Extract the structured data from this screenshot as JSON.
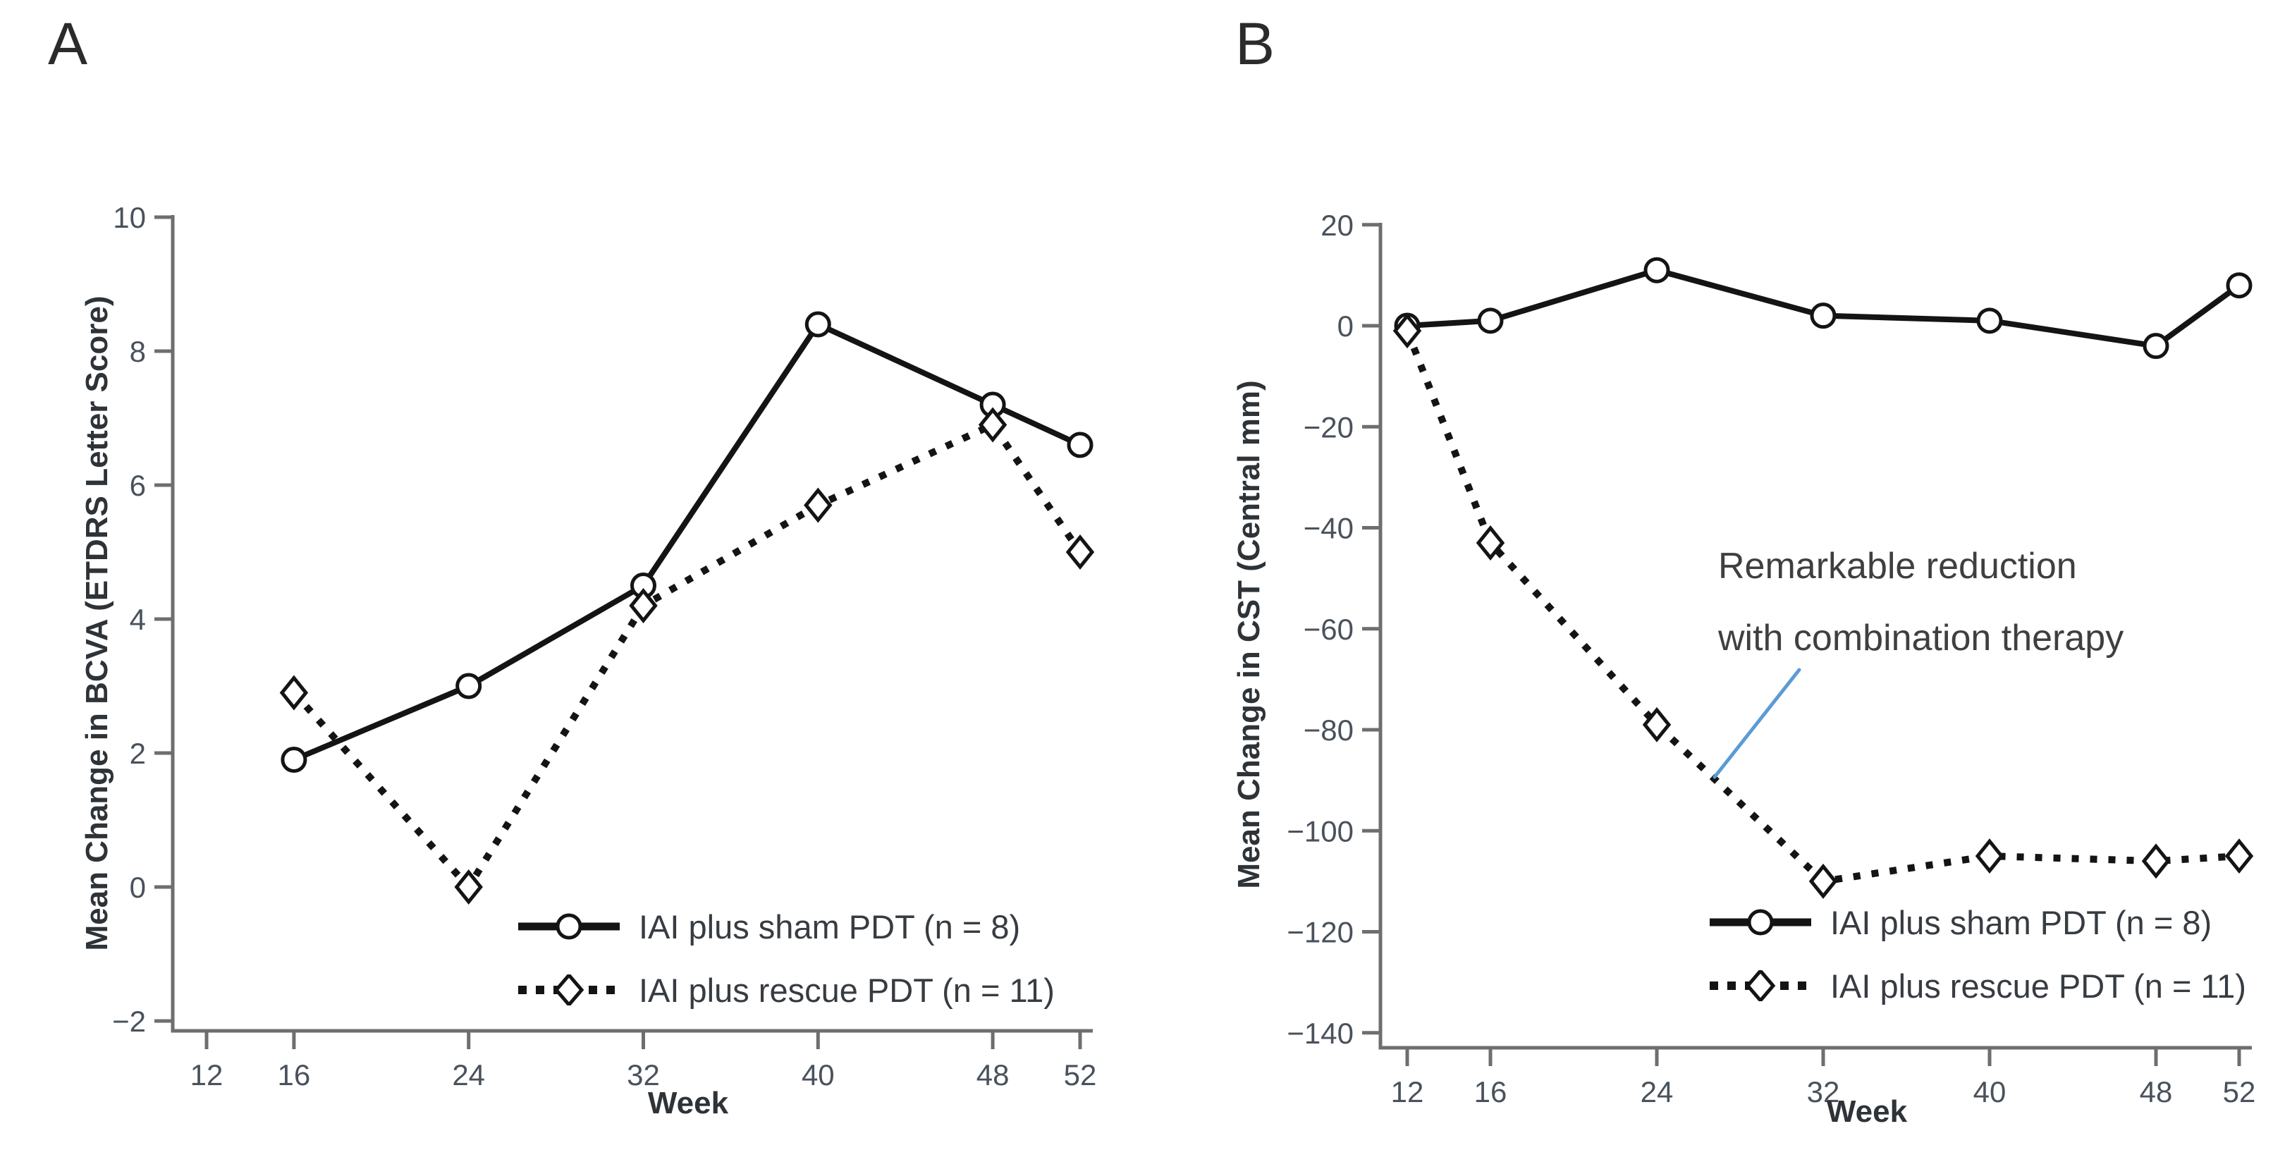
{
  "figure": {
    "background": "#ffffff",
    "panel_labels": [
      "A",
      "B"
    ]
  },
  "colors": {
    "line_black": "#141414",
    "axis_gray": "#6e6e6e",
    "tick_text": "#49525c",
    "accent_blue": "#5b9bd5",
    "marker_fill": "#ffffff"
  },
  "chart_data": [
    {
      "panel_label": "A",
      "type": "line",
      "title": "",
      "xlabel": "Week",
      "ylabel": "Mean Change in BCVA (ETDRS Letter Score)",
      "x_ticks": [
        12,
        16,
        24,
        32,
        40,
        48,
        52
      ],
      "y_ticks": [
        10,
        8,
        6,
        4,
        2,
        0,
        -2
      ],
      "xlim": [
        12,
        52
      ],
      "ylim": [
        -2,
        10
      ],
      "grid": false,
      "legend_position": "inside-bottom-right",
      "series": [
        {
          "name": "IAI plus sham PDT (n = 8)",
          "line_style": "solid",
          "marker": "circle",
          "x": [
            16,
            24,
            32,
            40,
            48,
            52
          ],
          "y": [
            1.9,
            3.0,
            4.5,
            8.4,
            7.2,
            6.6
          ]
        },
        {
          "name": "IAI plus rescue PDT (n = 11)",
          "line_style": "dotted",
          "marker": "diamond",
          "x": [
            16,
            24,
            32,
            40,
            48,
            52
          ],
          "y": [
            2.9,
            0.0,
            4.2,
            5.7,
            6.9,
            5.0
          ]
        }
      ]
    },
    {
      "panel_label": "B",
      "type": "line",
      "title": "",
      "xlabel": "Week",
      "ylabel": "Mean Change in CST (Central mm)",
      "x_ticks": [
        12,
        16,
        24,
        32,
        40,
        48,
        52
      ],
      "y_ticks": [
        20,
        0,
        -20,
        -40,
        -60,
        -80,
        -100,
        -120,
        -140
      ],
      "xlim": [
        12,
        52
      ],
      "ylim": [
        -140,
        20
      ],
      "grid": false,
      "legend_position": "inside-bottom-right",
      "series": [
        {
          "name": "IAI plus sham PDT (n = 8)",
          "line_style": "solid",
          "marker": "circle",
          "x": [
            12,
            16,
            24,
            32,
            40,
            48,
            52
          ],
          "y": [
            0,
            1,
            11,
            2,
            1,
            -4,
            8
          ]
        },
        {
          "name": "IAI plus rescue PDT (n = 11)",
          "line_style": "dotted",
          "marker": "diamond",
          "x": [
            12,
            16,
            24,
            32,
            40,
            48,
            52
          ],
          "y": [
            -1,
            -43,
            -79,
            -110,
            -105,
            -106,
            -105
          ]
        }
      ],
      "annotation": {
        "text_lines": [
          "Remarkable reduction",
          "with combination therapy"
        ],
        "callout_color": "#5b9bd5"
      }
    }
  ]
}
